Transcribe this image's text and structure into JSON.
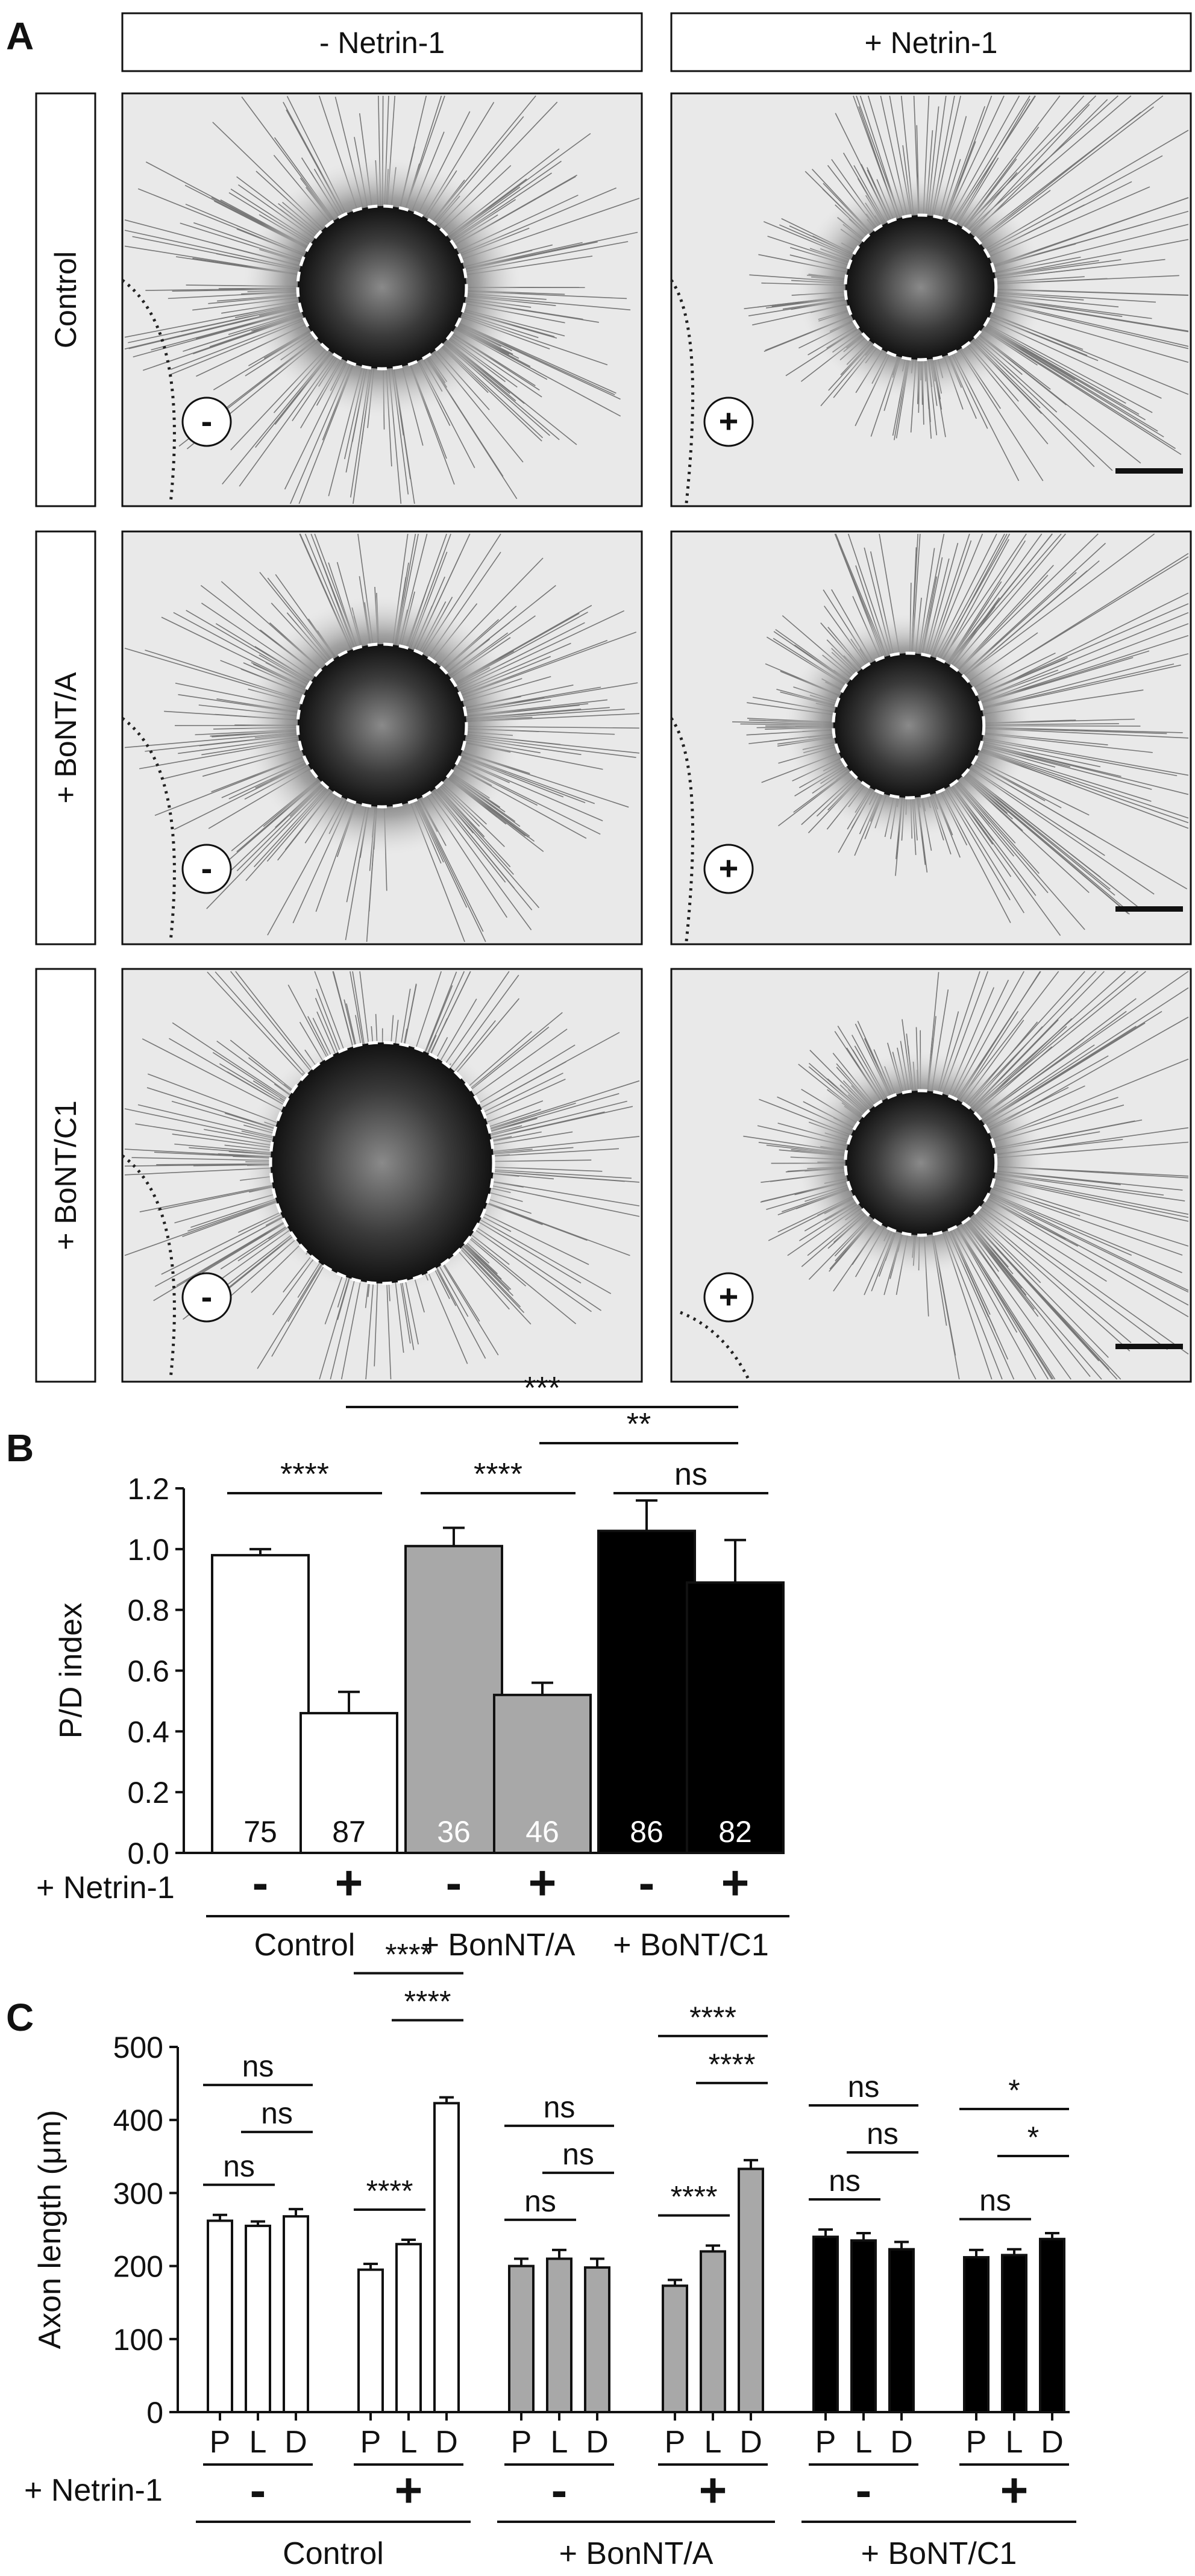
{
  "panelA": {
    "label": "A",
    "columns": [
      "- Netrin-1",
      "+ Netrin-1"
    ],
    "rows": [
      "Control",
      "+ BoNT/A",
      "+ BoNT/C1"
    ],
    "source_symbols": [
      [
        "-",
        "+"
      ],
      [
        "-",
        "+"
      ],
      [
        "-",
        "+"
      ]
    ]
  },
  "chart_data": [
    {
      "type": "bar",
      "panel": "B",
      "ylabel": "P/D index",
      "ylim": [
        0,
        1.2
      ],
      "yticks": [
        "0.0",
        "0.2",
        "0.4",
        "0.6",
        "0.8",
        "1.0",
        "1.2"
      ],
      "row_label": "+ Netrin-1",
      "symbols": [
        "-",
        "+",
        "-",
        "+",
        "-",
        "+"
      ],
      "groups": [
        "Control",
        "+ BonNT/A",
        "+ BoNT/C1"
      ],
      "values": [
        0.98,
        0.46,
        1.01,
        0.52,
        1.06,
        0.89
      ],
      "errors": [
        0.02,
        0.07,
        0.06,
        0.04,
        0.1,
        0.14
      ],
      "n_labels": [
        "75",
        "87",
        "36",
        "46",
        "86",
        "82"
      ],
      "colors": [
        "#ffffff",
        "#ffffff",
        "#a8a8a8",
        "#a8a8a8",
        "#000000",
        "#000000"
      ],
      "significance": [
        {
          "from": 0,
          "to": 1,
          "label": "****"
        },
        {
          "from": 2,
          "to": 3,
          "label": "****"
        },
        {
          "from": 1,
          "to": 5,
          "label": "***"
        },
        {
          "from": 3,
          "to": 5,
          "label": "**"
        },
        {
          "from": 4,
          "to": 5,
          "label": "ns"
        }
      ]
    },
    {
      "type": "bar",
      "panel": "C",
      "ylabel": "Axon length (μm)",
      "ylim": [
        0,
        500
      ],
      "yticks": [
        "0",
        "100",
        "200",
        "300",
        "400",
        "500"
      ],
      "row_label": "+ Netrin-1",
      "categories": [
        "P",
        "L",
        "D"
      ],
      "groups": [
        "Control",
        "+ BonNT/A",
        "+ BoNT/C1"
      ],
      "subgroups": [
        {
          "symbol": "-",
          "values": [
            262,
            255,
            268
          ],
          "errors": [
            8,
            6,
            10
          ],
          "color": "#ffffff"
        },
        {
          "symbol": "+",
          "values": [
            195,
            230,
            423
          ],
          "errors": [
            8,
            6,
            8
          ],
          "color": "#ffffff"
        },
        {
          "symbol": "-",
          "values": [
            200,
            210,
            198
          ],
          "errors": [
            10,
            12,
            12
          ],
          "color": "#a8a8a8"
        },
        {
          "symbol": "+",
          "values": [
            173,
            220,
            333
          ],
          "errors": [
            8,
            8,
            12
          ],
          "color": "#a8a8a8"
        },
        {
          "symbol": "-",
          "values": [
            240,
            235,
            223
          ],
          "errors": [
            10,
            10,
            10
          ],
          "color": "#000000"
        },
        {
          "symbol": "+",
          "values": [
            212,
            215,
            237
          ],
          "errors": [
            10,
            8,
            8
          ],
          "color": "#000000"
        }
      ],
      "significance": [
        {
          "subgroup": 0,
          "from": 0,
          "to": 2,
          "label": "ns",
          "level": 2
        },
        {
          "subgroup": 0,
          "from": 1,
          "to": 2,
          "label": "ns",
          "level": 1
        },
        {
          "subgroup": 0,
          "from": 0,
          "to": 1,
          "label": "ns",
          "level": 0
        },
        {
          "subgroup": 1,
          "from": 0,
          "to": 2,
          "label": "****",
          "level": 2
        },
        {
          "subgroup": 1,
          "from": 1,
          "to": 2,
          "label": "****",
          "level": 1
        },
        {
          "subgroup": 1,
          "from": 0,
          "to": 1,
          "label": "****",
          "level": 0
        },
        {
          "subgroup": 2,
          "from": 0,
          "to": 2,
          "label": "ns",
          "level": 2
        },
        {
          "subgroup": 2,
          "from": 1,
          "to": 2,
          "label": "ns",
          "level": 1
        },
        {
          "subgroup": 2,
          "from": 0,
          "to": 1,
          "label": "ns",
          "level": 0
        },
        {
          "subgroup": 3,
          "from": 0,
          "to": 2,
          "label": "****",
          "level": 2
        },
        {
          "subgroup": 3,
          "from": 1,
          "to": 2,
          "label": "****",
          "level": 1
        },
        {
          "subgroup": 3,
          "from": 0,
          "to": 1,
          "label": "****",
          "level": 0
        },
        {
          "subgroup": 4,
          "from": 0,
          "to": 2,
          "label": "ns",
          "level": 2
        },
        {
          "subgroup": 4,
          "from": 1,
          "to": 2,
          "label": "ns",
          "level": 1
        },
        {
          "subgroup": 4,
          "from": 0,
          "to": 1,
          "label": "ns",
          "level": 0
        },
        {
          "subgroup": 5,
          "from": 0,
          "to": 2,
          "label": "*",
          "level": 2
        },
        {
          "subgroup": 5,
          "from": 1,
          "to": 2,
          "label": "*",
          "level": 1
        },
        {
          "subgroup": 5,
          "from": 0,
          "to": 1,
          "label": "ns",
          "level": 0
        }
      ]
    }
  ]
}
